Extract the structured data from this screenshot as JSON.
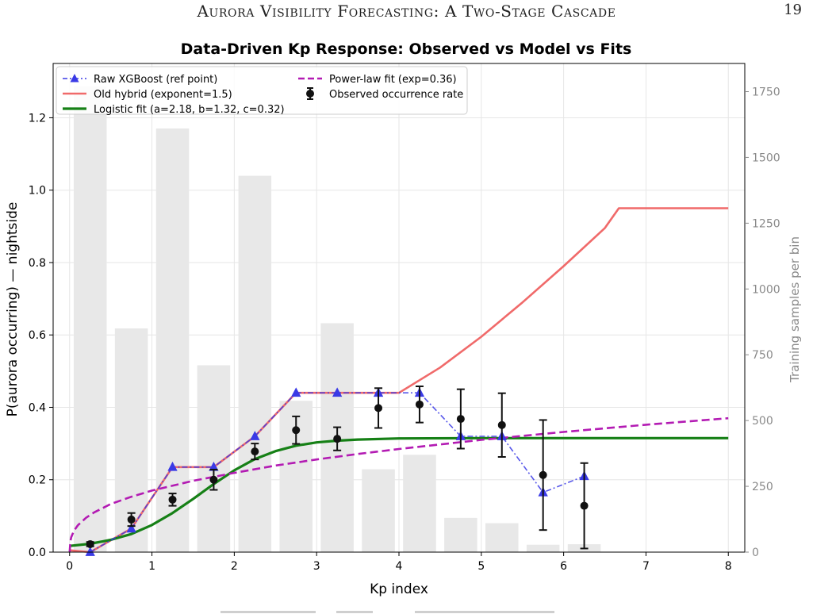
{
  "page": {
    "running_title": "Aurora Visibility Forecasting: A Two-Stage Cascade",
    "page_number": "19"
  },
  "chart_data": {
    "type": "line",
    "title": "Data-Driven Kp Response: Observed vs Model vs Fits",
    "xlabel": "Kp index",
    "ylabel": "P(aurora occurring) — nightside",
    "y2label": "Training samples per bin",
    "xlim": [
      -0.2,
      8.2
    ],
    "ylim": [
      0,
      1.35
    ],
    "y2lim": [
      0,
      1857
    ],
    "xticks": [
      0,
      1,
      2,
      3,
      4,
      5,
      6,
      7,
      8
    ],
    "yticks": [
      0.0,
      0.2,
      0.4,
      0.6,
      0.8,
      1.0,
      1.2
    ],
    "y2ticks": [
      0,
      250,
      500,
      750,
      1000,
      1250,
      1500,
      1750
    ],
    "grid": true,
    "legend_position": "top-left",
    "colors": {
      "raw": "#3a3ae6",
      "old": "#f06a6a",
      "logistic": "#168016",
      "power": "#b31bb3",
      "observed": "#111111",
      "bars": "#e8e8e8",
      "grid": "#e6e6e6",
      "right_axis": "#8a8a8a"
    },
    "bars": {
      "name": "Training samples per bin",
      "x": [
        0.25,
        0.75,
        1.25,
        1.75,
        2.25,
        2.75,
        3.25,
        3.75,
        4.25,
        4.75,
        5.25,
        5.75,
        6.25
      ],
      "values": [
        1770,
        850,
        1610,
        710,
        1430,
        575,
        870,
        315,
        370,
        130,
        110,
        28,
        30
      ],
      "width": 0.4
    },
    "series": [
      {
        "key": "raw",
        "name": "Raw XGBoost (ref point)",
        "style": "dash-dot with triangle markers",
        "x": [
          0.25,
          0.75,
          1.25,
          1.75,
          2.25,
          2.75,
          3.25,
          3.75,
          4.25,
          4.75,
          5.25,
          5.75,
          6.25
        ],
        "y": [
          0.0,
          0.065,
          0.235,
          0.235,
          0.32,
          0.44,
          0.44,
          0.44,
          0.44,
          0.32,
          0.32,
          0.165,
          0.21
        ]
      },
      {
        "key": "old",
        "name": "Old hybrid (exponent=1.5)",
        "style": "solid",
        "x": [
          0,
          0.25,
          0.75,
          1.25,
          1.75,
          2.25,
          2.75,
          3.25,
          3.75,
          4.0,
          4.5,
          5.0,
          5.5,
          6.0,
          6.5,
          6.67,
          7.0,
          7.5,
          8.0
        ],
        "y": [
          0.005,
          0.0,
          0.065,
          0.235,
          0.235,
          0.32,
          0.44,
          0.44,
          0.44,
          0.44,
          0.51,
          0.595,
          0.69,
          0.79,
          0.895,
          0.95,
          0.95,
          0.95,
          0.95
        ]
      },
      {
        "key": "logistic",
        "name": "Logistic fit (a=2.18, b=1.32, c=0.32)",
        "style": "solid thick",
        "x": [
          0,
          0.25,
          0.5,
          0.75,
          1.0,
          1.25,
          1.5,
          1.75,
          2.0,
          2.25,
          2.5,
          2.75,
          3.0,
          3.25,
          3.5,
          4.0,
          5.0,
          6.0,
          7.0,
          8.0
        ],
        "y": [
          0.017,
          0.023,
          0.034,
          0.05,
          0.075,
          0.108,
          0.147,
          0.188,
          0.226,
          0.257,
          0.279,
          0.294,
          0.303,
          0.308,
          0.311,
          0.314,
          0.315,
          0.315,
          0.315,
          0.315
        ]
      },
      {
        "key": "power",
        "name": "Power-law fit (exp=0.36)",
        "style": "dashed",
        "x": [
          0,
          0.01,
          0.02,
          0.05,
          0.1,
          0.2,
          0.3,
          0.5,
          0.75,
          1.0,
          1.5,
          2.0,
          2.5,
          3.0,
          3.5,
          4.0,
          5.0,
          6.0,
          7.0,
          8.0
        ],
        "y": [
          0.0,
          0.031,
          0.041,
          0.058,
          0.074,
          0.095,
          0.11,
          0.133,
          0.153,
          0.17,
          0.197,
          0.219,
          0.239,
          0.256,
          0.271,
          0.285,
          0.31,
          0.332,
          0.352,
          0.37
        ]
      },
      {
        "key": "observed",
        "name": "Observed occurrence rate",
        "style": "markers with error bars",
        "x": [
          0.25,
          0.75,
          1.25,
          1.75,
          2.25,
          2.75,
          3.25,
          3.75,
          4.25,
          4.75,
          5.25,
          5.75,
          6.25
        ],
        "y": [
          0.022,
          0.09,
          0.145,
          0.2,
          0.278,
          0.337,
          0.313,
          0.398,
          0.408,
          0.368,
          0.351,
          0.213,
          0.128
        ],
        "yerr": [
          0.006,
          0.018,
          0.017,
          0.028,
          0.022,
          0.038,
          0.032,
          0.055,
          0.05,
          0.082,
          0.088,
          0.152,
          0.118
        ]
      }
    ]
  }
}
